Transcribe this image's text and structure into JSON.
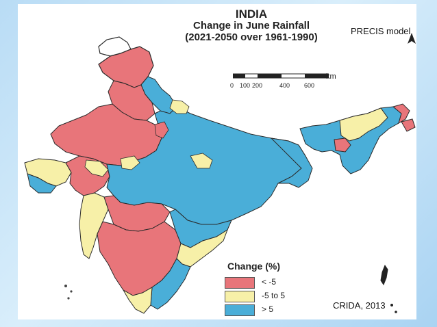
{
  "map": {
    "title_line1": "INDIA",
    "title_line2": "Change in June Rainfall",
    "title_line3": "(2021-2050 over 1961-1990)",
    "model_label": "PRECIS model",
    "scale": {
      "ticks": [
        "0",
        "100",
        "200",
        "400",
        "600"
      ],
      "unit": "km"
    },
    "legend": {
      "title": "Change (%)",
      "items": [
        {
          "label": "< -5",
          "color": "#e8757a"
        },
        {
          "label": "-5 to 5",
          "color": "#f7f0a8"
        },
        {
          "label": "> 5",
          "color": "#4aaed8"
        }
      ]
    },
    "credit": "CRIDA, 2013",
    "colors": {
      "background": "#b9dcf5",
      "boundary": "#2a2a2a",
      "unshaded": "#ffffff"
    }
  }
}
